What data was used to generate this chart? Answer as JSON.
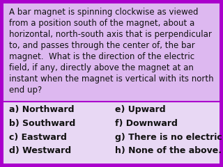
{
  "question_text": "A bar magnet is spinning clockwise as viewed\nfrom a position south of the magnet, about a\nhorizontal, north-south axis that is perpendicular\nto, and passes through the center of, the bar\nmagnet.  What is the direction of the electric\nfield, if any, directly above the magnet at an\ninstant when the magnet is vertical with its north\nend up?",
  "answers_left": [
    "a) Northward",
    "b) Southward",
    "c) Eastward",
    "d) Westward"
  ],
  "answers_right": [
    "e) Upward",
    "f) Downward",
    "g) There is no electric field.",
    "h) None of the above."
  ],
  "question_bg": "#ddb8f0",
  "answer_bg": "#e8d8f4",
  "border_color": "#aa00cc",
  "border_width": 5,
  "question_fontsize": 8.5,
  "answer_fontsize": 9.0,
  "text_color": "#111111"
}
